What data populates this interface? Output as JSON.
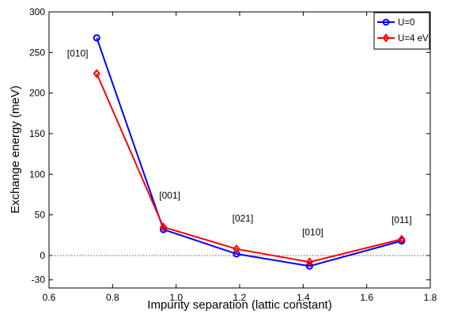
{
  "chart_data": {
    "type": "line",
    "title": "",
    "xlabel": "Impurity separation (lattic constant)",
    "ylabel": "Exchange energy (meV)",
    "xlim": [
      0.6,
      1.8
    ],
    "ylim": [
      -40,
      300
    ],
    "xticks": [
      "0.6",
      "0.8",
      "1.0",
      "1.2",
      "1.4",
      "1.6",
      "1.8"
    ],
    "yticks": [
      "300",
      "250",
      "200",
      "150",
      "100",
      "50",
      "0",
      "-30"
    ],
    "grid": false,
    "zero_reference_line": true,
    "legend_position": "top-right",
    "series": [
      {
        "name": "U=0",
        "color": "#0000ff",
        "marker": "circle",
        "x": [
          0.75,
          0.96,
          1.19,
          1.42,
          1.71
        ],
        "y": [
          268,
          32,
          2,
          -13,
          18
        ]
      },
      {
        "name": "U=4 eV",
        "color": "#ff0000",
        "marker": "diamond",
        "x": [
          0.75,
          0.96,
          1.19,
          1.42,
          1.71
        ],
        "y": [
          224,
          35,
          8,
          -8,
          20
        ]
      }
    ],
    "annotations": [
      {
        "text": "[010]",
        "x": 0.69,
        "y": 245
      },
      {
        "text": "[001]",
        "x": 0.98,
        "y": 70
      },
      {
        "text": "[021]",
        "x": 1.21,
        "y": 42
      },
      {
        "text": "[010]",
        "x": 1.43,
        "y": 25
      },
      {
        "text": "[011]",
        "x": 1.71,
        "y": 40
      }
    ]
  }
}
